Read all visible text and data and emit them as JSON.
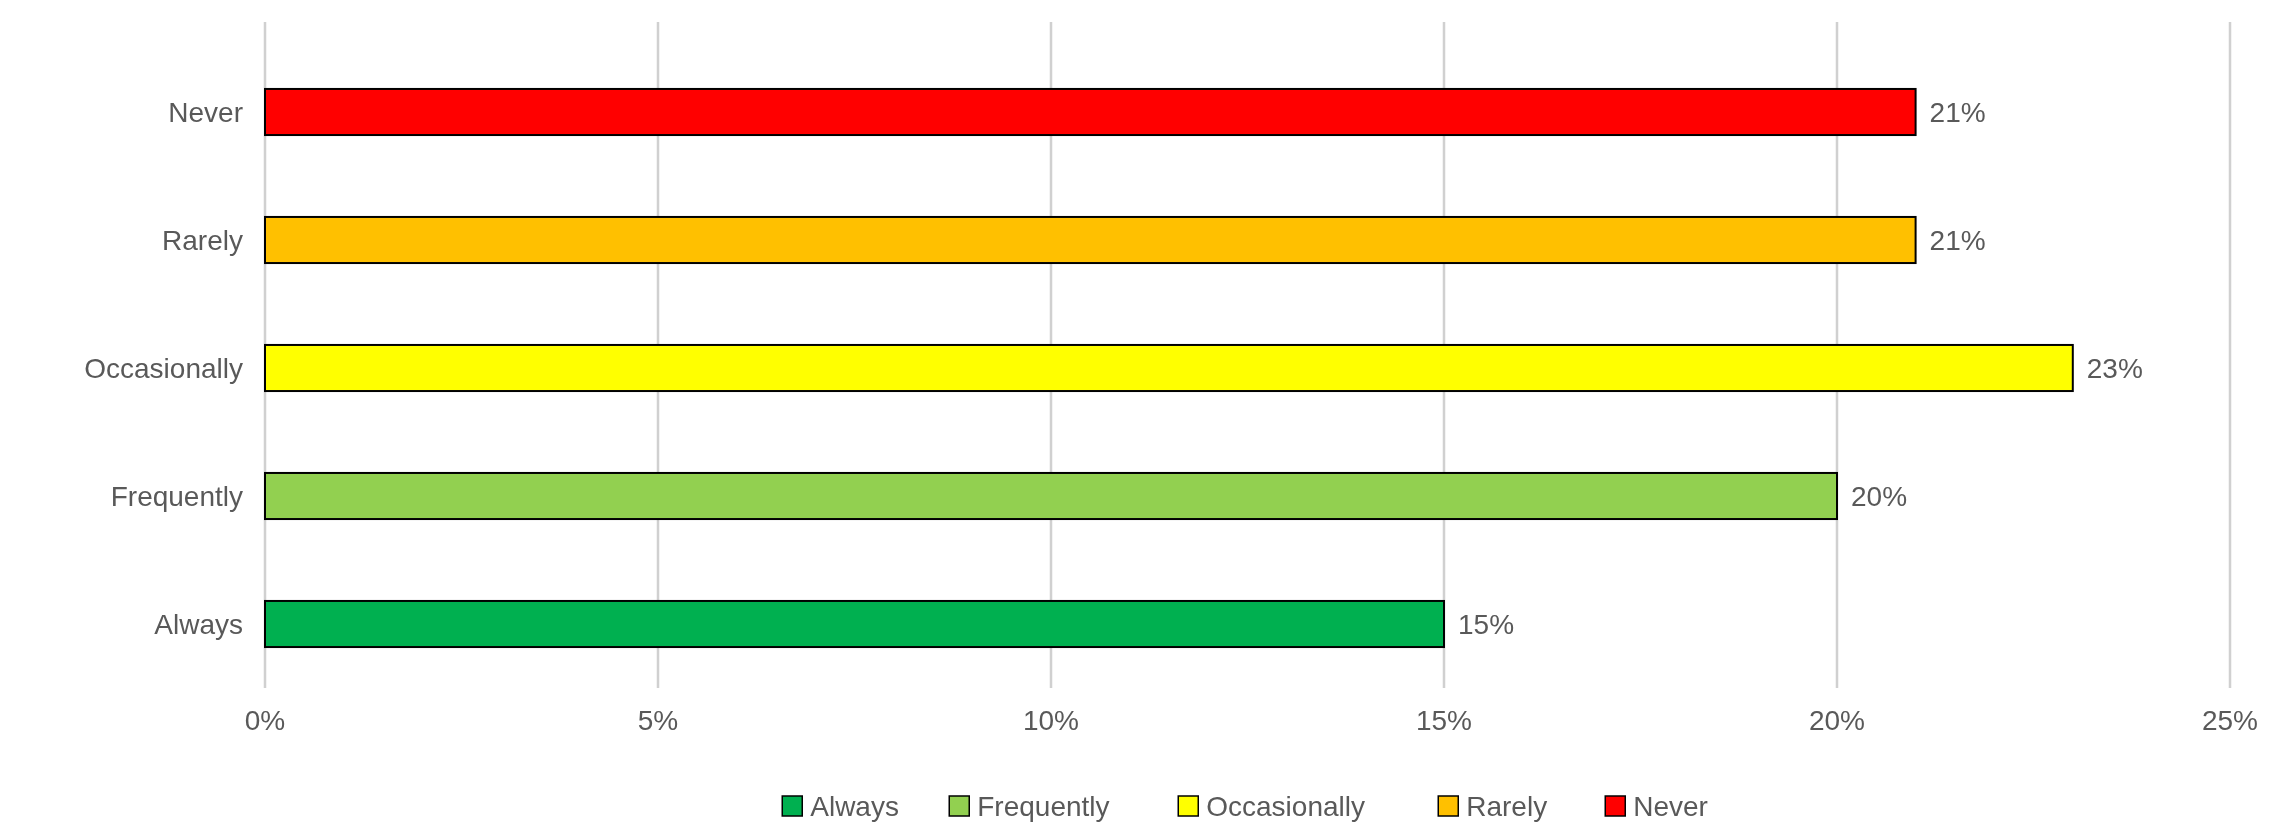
{
  "chart_data": {
    "type": "bar",
    "orientation": "horizontal",
    "stacked": true,
    "categories": [
      "Never",
      "Rarely",
      "Occasionally",
      "Frequently",
      "Always"
    ],
    "series": [
      {
        "name": "Always",
        "color": "#00b050",
        "values": [
          null,
          null,
          null,
          null,
          15
        ],
        "value_labels": [
          null,
          null,
          null,
          null,
          "15%"
        ]
      },
      {
        "name": "Frequently",
        "color": "#92d050",
        "values": [
          null,
          null,
          null,
          20,
          null
        ],
        "value_labels": [
          null,
          null,
          null,
          "20%",
          null
        ]
      },
      {
        "name": "Occasionally",
        "color": "#ffff00",
        "values": [
          null,
          null,
          23,
          null,
          null
        ],
        "value_labels": [
          null,
          null,
          "23%",
          null,
          null
        ]
      },
      {
        "name": "Rarely",
        "color": "#ffc000",
        "values": [
          null,
          21,
          null,
          null,
          null
        ],
        "value_labels": [
          null,
          "21%",
          null,
          null,
          null
        ]
      },
      {
        "name": "Never",
        "color": "#ff0000",
        "values": [
          21,
          null,
          null,
          null,
          null
        ],
        "value_labels": [
          "21%",
          null,
          null,
          null,
          null
        ]
      }
    ],
    "xlim": [
      0,
      25
    ],
    "xticks": [
      {
        "value": 0,
        "label": "0%"
      },
      {
        "value": 5,
        "label": "5%"
      },
      {
        "value": 10,
        "label": "10%"
      },
      {
        "value": 15,
        "label": "15%"
      },
      {
        "value": 20,
        "label": "20%"
      },
      {
        "value": 25,
        "label": "25%"
      }
    ],
    "grid": "x",
    "legend": "bottom"
  }
}
